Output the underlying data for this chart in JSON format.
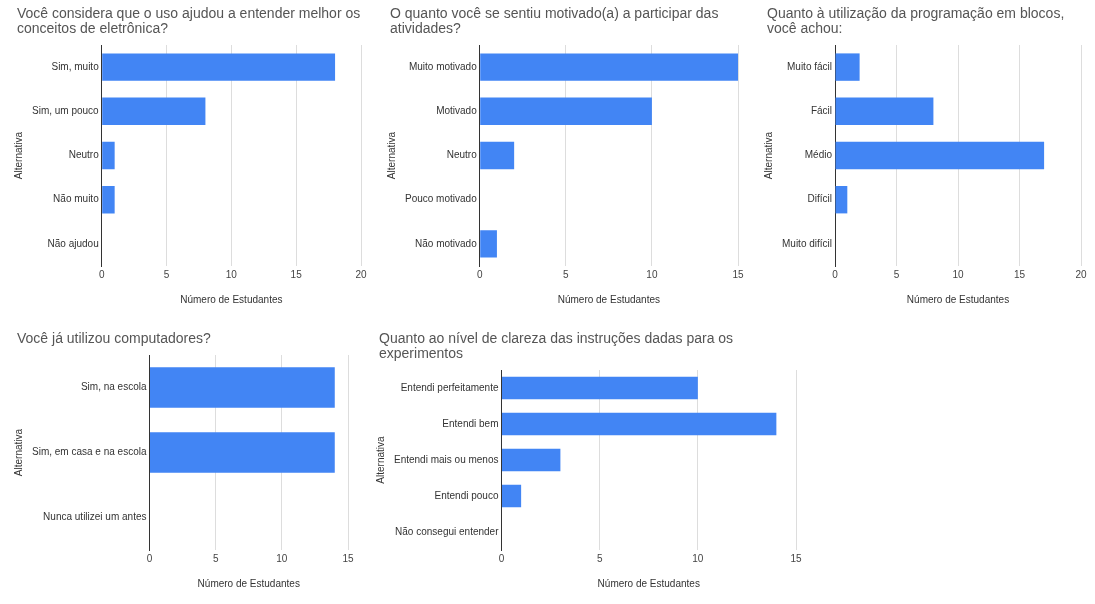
{
  "chart_data": [
    {
      "type": "bar",
      "orientation": "horizontal",
      "title": "Você considera que o uso ajudou a entender melhor os conceitos de eletrônica?",
      "xlabel": "Número de Estudantes",
      "ylabel": "Alternativa",
      "categories": [
        "Sim, muito",
        "Sim, um pouco",
        "Neutro",
        "Não muito",
        "Não ajudou"
      ],
      "values": [
        18,
        8,
        1,
        1,
        0
      ],
      "color": "#4285f4",
      "xlim": [
        0,
        20
      ],
      "xticks": [
        0,
        5,
        10,
        15,
        20
      ],
      "grid": "x"
    },
    {
      "type": "bar",
      "orientation": "horizontal",
      "title": "O quanto você se sentiu motivado(a) a participar das atividades?",
      "xlabel": "Número de Estudantes",
      "ylabel": "Alternativa",
      "categories": [
        "Muito motivado",
        "Motivado",
        "Neutro",
        "Pouco motivado",
        "Não motivado"
      ],
      "values": [
        15,
        10,
        2,
        0,
        1
      ],
      "color": "#4285f4",
      "xlim": [
        0,
        15
      ],
      "xticks": [
        0,
        5,
        10,
        15
      ],
      "grid": "x"
    },
    {
      "type": "bar",
      "orientation": "horizontal",
      "title": "Quanto à utilização da programação em blocos, você achou:",
      "xlabel": "Número de Estudantes",
      "ylabel": "Alternativa",
      "categories": [
        "Muito fácil",
        "Fácil",
        "Médio",
        "Difícil",
        "Muito difícil"
      ],
      "values": [
        2,
        8,
        17,
        1,
        0
      ],
      "color": "#4285f4",
      "xlim": [
        0,
        20
      ],
      "xticks": [
        0,
        5,
        10,
        15,
        20
      ],
      "grid": "x"
    },
    {
      "type": "bar",
      "orientation": "horizontal",
      "title": "Você já utilizou computadores?",
      "xlabel": "Número de Estudantes",
      "ylabel": "Alternativa",
      "categories": [
        "Sim, na escola",
        "Sim, em casa e na escola",
        "Nunca utilizei um antes"
      ],
      "values": [
        14,
        14,
        0
      ],
      "color": "#4285f4",
      "xlim": [
        0,
        15
      ],
      "xticks": [
        0,
        5,
        10,
        15
      ],
      "grid": "x"
    },
    {
      "type": "bar",
      "orientation": "horizontal",
      "title": "Quanto ao nível de clareza das instruções dadas para os experimentos",
      "xlabel": "Número de Estudantes",
      "ylabel": "Alternativa",
      "categories": [
        "Entendi perfeitamente",
        "Entendi bem",
        "Entendi mais ou menos",
        "Entendi pouco",
        "Não consegui entender"
      ],
      "values": [
        10,
        14,
        3,
        1,
        0
      ],
      "color": "#4285f4",
      "xlim": [
        0,
        15
      ],
      "xticks": [
        0,
        5,
        10,
        15
      ],
      "grid": "x"
    }
  ]
}
